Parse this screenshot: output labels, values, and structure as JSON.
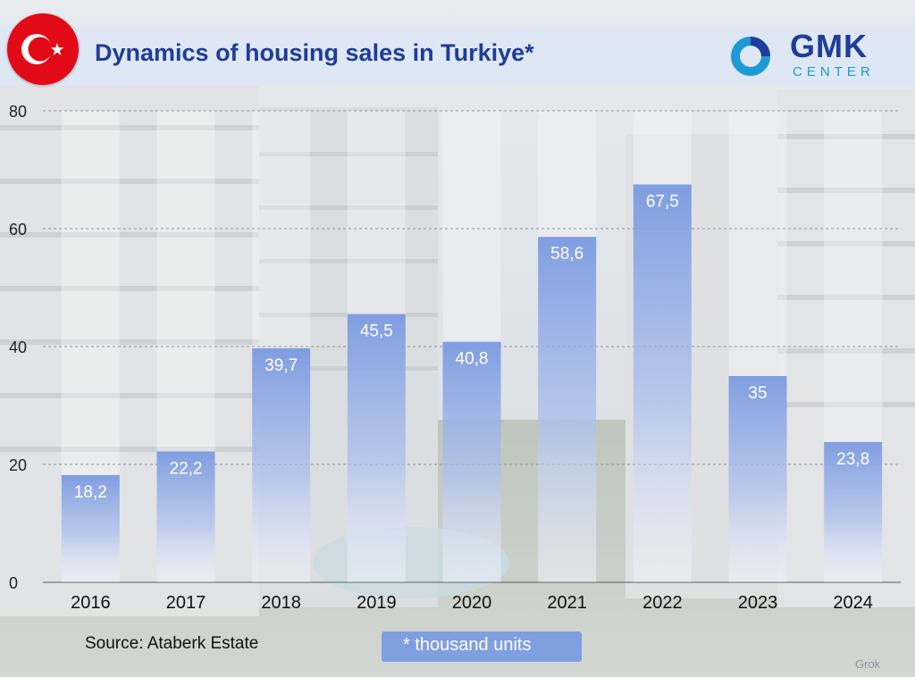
{
  "header": {
    "title": "Dynamics of housing sales in Turkiye*"
  },
  "logo": {
    "name": "GMK",
    "sub": "CENTER"
  },
  "footer": {
    "source": "Source: Ataberk Estate",
    "note": "* thousand units",
    "watermark": "Grok"
  },
  "colors": {
    "title": "#1f3d99",
    "bar_top": "#7c9be0",
    "logo_accent": "#1b9ad6",
    "flag": "#e30a17"
  },
  "chart_data": {
    "type": "bar",
    "title": "Dynamics of housing sales in Turkiye*",
    "categories": [
      "2016",
      "2017",
      "2018",
      "2019",
      "2020",
      "2021",
      "2022",
      "2023",
      "2024"
    ],
    "values": [
      18.2,
      22.2,
      39.7,
      45.5,
      40.8,
      58.6,
      67.5,
      35,
      23.8
    ],
    "value_labels": [
      "18,2",
      "22,2",
      "39,7",
      "45,5",
      "40,8",
      "58,6",
      "67,5",
      "35",
      "23,8"
    ],
    "yticks": [
      0,
      20,
      40,
      60,
      80
    ],
    "ylim": [
      0,
      80
    ],
    "xlabel": "",
    "ylabel": "",
    "grid": true,
    "legend": "none"
  }
}
